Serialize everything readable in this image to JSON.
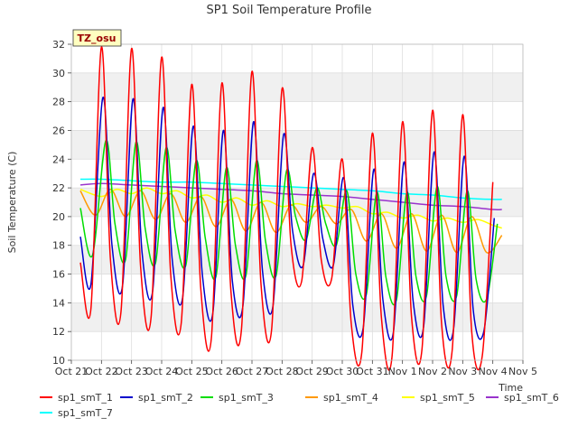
{
  "chart_data": {
    "type": "line",
    "title": "SP1 Soil Temperature Profile",
    "xlabel": "Time",
    "ylabel": "Soil Temperature (C)",
    "ylim": [
      10,
      32
    ],
    "yticks": [
      10,
      12,
      14,
      16,
      18,
      20,
      22,
      24,
      26,
      28,
      30,
      32
    ],
    "xlim": [
      0,
      15
    ],
    "xticks": [
      "Oct 21",
      "Oct 22",
      "Oct 23",
      "Oct 24",
      "Oct 25",
      "Oct 26",
      "Oct 27",
      "Oct 28",
      "Oct 29",
      "Oct 30",
      "Oct 31",
      "Nov 1",
      "Nov 2",
      "Nov 3",
      "Nov 4",
      "Nov 5"
    ],
    "annotation": "TZ_osu",
    "legend_position": "bottom",
    "x_units": "days since Oct 21",
    "series": [
      {
        "name": "sp1_smT_1",
        "color": "#ff0000",
        "x": [
          0.3,
          0.65,
          1.0,
          1.3,
          1.65,
          2.0,
          2.3,
          2.65,
          3.0,
          3.3,
          3.65,
          4.0,
          4.3,
          4.65,
          5.0,
          5.3,
          5.65,
          6.0,
          6.3,
          6.65,
          7.0,
          7.3,
          7.65,
          8.0,
          8.3,
          8.65,
          9.0,
          9.3,
          9.65,
          10.0,
          10.3,
          10.65,
          11.0,
          11.3,
          11.65,
          12.0,
          12.3,
          12.65,
          13.0,
          13.3,
          13.65,
          14.0
        ],
        "y": [
          16.8,
          13.6,
          31.8,
          17.0,
          13.4,
          31.7,
          16.5,
          13.0,
          31.1,
          16.0,
          12.6,
          29.2,
          15.0,
          11.5,
          29.3,
          14.8,
          12.1,
          30.1,
          15.3,
          12.1,
          28.9,
          18.0,
          15.5,
          24.8,
          17.0,
          15.7,
          24.0,
          12.5,
          10.6,
          25.8,
          13.0,
          10.2,
          26.6,
          13.0,
          10.8,
          27.4,
          12.5,
          10.7,
          27.1,
          12.0,
          10.3,
          22.4
        ]
      },
      {
        "name": "sp1_smT_2",
        "color": "#0000cc",
        "x": [
          0.3,
          0.65,
          1.05,
          1.35,
          1.7,
          2.05,
          2.35,
          2.7,
          3.05,
          3.35,
          3.7,
          4.05,
          4.35,
          4.7,
          5.05,
          5.35,
          5.7,
          6.05,
          6.35,
          6.7,
          7.05,
          7.35,
          7.7,
          8.05,
          8.35,
          8.7,
          9.05,
          9.35,
          9.7,
          10.05,
          10.35,
          10.7,
          11.05,
          11.35,
          11.7,
          12.05,
          12.35,
          12.7,
          13.05,
          13.35,
          13.7,
          14.05
        ],
        "y": [
          18.6,
          15.3,
          28.3,
          18.0,
          15.2,
          28.2,
          17.5,
          14.8,
          27.6,
          17.0,
          14.4,
          26.3,
          16.0,
          13.3,
          26.0,
          15.5,
          13.8,
          26.6,
          16.2,
          13.8,
          25.7,
          19.0,
          16.6,
          23.0,
          18.5,
          16.6,
          22.7,
          13.8,
          12.3,
          23.3,
          14.2,
          12.0,
          23.8,
          14.2,
          12.3,
          24.5,
          13.8,
          12.2,
          24.2,
          13.5,
          12.0,
          19.9
        ]
      },
      {
        "name": "sp1_smT_3",
        "color": "#00dd00",
        "x": [
          0.3,
          0.7,
          1.15,
          1.45,
          1.8,
          2.15,
          2.45,
          2.8,
          3.15,
          3.45,
          3.8,
          4.15,
          4.45,
          4.8,
          5.15,
          5.45,
          5.8,
          6.15,
          6.45,
          6.8,
          7.15,
          7.45,
          7.8,
          8.15,
          8.45,
          8.8,
          9.15,
          9.45,
          9.8,
          10.15,
          10.45,
          10.8,
          11.15,
          11.45,
          11.8,
          12.15,
          12.45,
          12.8,
          13.15,
          13.45,
          13.8,
          14.15
        ],
        "y": [
          20.6,
          17.3,
          25.3,
          19.5,
          17.0,
          25.2,
          19.2,
          16.8,
          24.8,
          19.0,
          16.6,
          23.9,
          18.5,
          15.8,
          23.4,
          18.0,
          15.9,
          23.9,
          18.3,
          15.9,
          23.2,
          20.0,
          18.4,
          22.0,
          19.5,
          18.0,
          21.8,
          16.0,
          14.6,
          21.7,
          15.8,
          14.2,
          21.7,
          15.8,
          14.5,
          22.1,
          15.8,
          14.5,
          21.8,
          15.6,
          14.3,
          19.5
        ]
      },
      {
        "name": "sp1_smT_4",
        "color": "#ff9900",
        "x": [
          0.3,
          0.8,
          1.3,
          1.8,
          2.3,
          2.8,
          3.3,
          3.8,
          4.3,
          4.8,
          5.3,
          5.8,
          6.3,
          6.8,
          7.3,
          7.8,
          8.3,
          8.8,
          9.3,
          9.8,
          10.3,
          10.8,
          11.3,
          11.8,
          12.3,
          12.8,
          13.3,
          13.8,
          14.3
        ],
        "y": [
          21.8,
          20.1,
          21.9,
          20.0,
          21.8,
          19.8,
          21.6,
          19.6,
          21.4,
          19.3,
          21.2,
          19.0,
          21.0,
          18.9,
          20.8,
          19.6,
          20.7,
          19.5,
          20.5,
          18.3,
          20.2,
          17.8,
          20.2,
          17.6,
          20.1,
          17.5,
          20.0,
          17.5,
          18.7
        ]
      },
      {
        "name": "sp1_smT_5",
        "color": "#ffff00",
        "x": [
          0.3,
          1.0,
          1.5,
          2.0,
          2.5,
          3.0,
          3.5,
          4.0,
          4.5,
          5.0,
          5.5,
          6.0,
          6.5,
          7.0,
          7.5,
          8.0,
          8.5,
          9.0,
          9.5,
          10.0,
          10.5,
          11.0,
          11.5,
          12.0,
          12.5,
          13.0,
          13.5,
          14.0,
          14.3
        ],
        "y": [
          21.9,
          21.4,
          21.9,
          21.6,
          22.0,
          21.6,
          21.8,
          21.3,
          21.5,
          21.0,
          21.3,
          20.8,
          21.1,
          20.7,
          20.9,
          20.7,
          20.8,
          20.6,
          20.7,
          20.2,
          20.3,
          19.9,
          20.1,
          19.7,
          19.9,
          19.6,
          19.8,
          19.4,
          19.2
        ]
      },
      {
        "name": "sp1_smT_6",
        "color": "#9933cc",
        "x": [
          0.3,
          1.0,
          2.0,
          3.0,
          4.0,
          5.0,
          6.0,
          7.0,
          8.0,
          9.0,
          10.0,
          11.0,
          12.0,
          13.0,
          14.0,
          14.3
        ],
        "y": [
          22.2,
          22.3,
          22.2,
          22.1,
          22.0,
          21.9,
          21.8,
          21.6,
          21.5,
          21.4,
          21.2,
          21.0,
          20.8,
          20.7,
          20.5,
          20.5
        ]
      },
      {
        "name": "sp1_smT_7",
        "color": "#00ffff",
        "x": [
          0.3,
          1.0,
          2.0,
          3.0,
          4.0,
          5.0,
          6.0,
          7.0,
          8.0,
          9.0,
          10.0,
          11.0,
          12.0,
          13.0,
          14.0,
          14.3
        ],
        "y": [
          22.6,
          22.6,
          22.5,
          22.4,
          22.4,
          22.3,
          22.2,
          22.1,
          22.0,
          21.9,
          21.8,
          21.6,
          21.5,
          21.3,
          21.2,
          21.2
        ]
      }
    ]
  }
}
